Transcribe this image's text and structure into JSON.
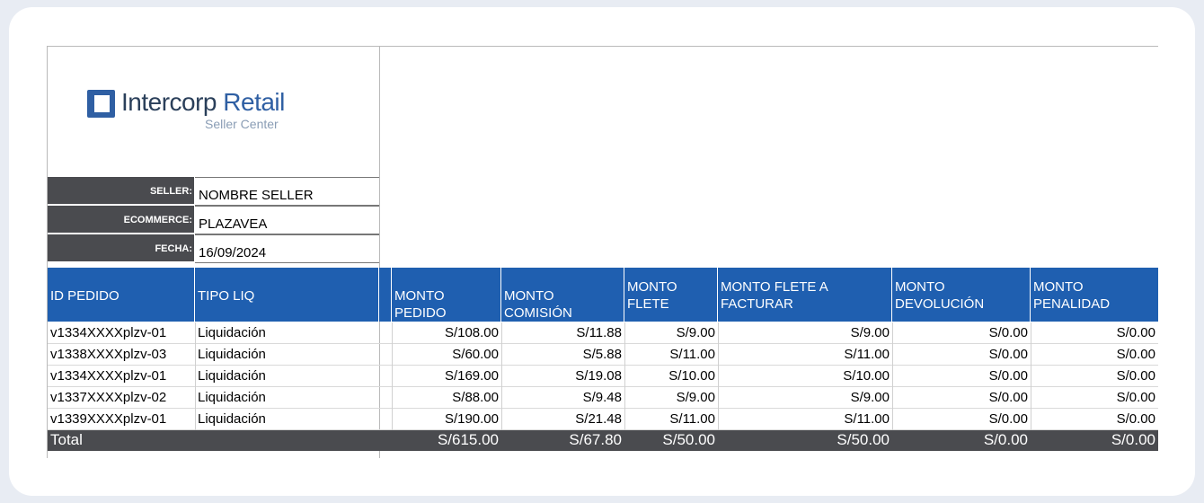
{
  "brand": {
    "name_dark": "Intercorp",
    "name_light": "Retail",
    "subtitle": "Seller Center",
    "mark_color": "#2f5fa3"
  },
  "info": [
    {
      "label": "SELLER:",
      "value": "NOMBRE SELLER"
    },
    {
      "label": "ECOMMERCE:",
      "value": "PLAZAVEA"
    },
    {
      "label": "FECHA:",
      "value": "16/09/2024"
    }
  ],
  "columns": [
    "ID PEDIDO",
    "TIPO LIQ",
    "MONTO PEDIDO",
    "MONTO COMISIÓN",
    "MONTO FLETE",
    "MONTO FLETE A FACTURAR",
    "MONTO DEVOLUCIÓN",
    "MONTO PENALIDAD"
  ],
  "rows": [
    [
      "v1334XXXXplzv-01",
      "Liquidación",
      "S/108.00",
      "S/11.88",
      "S/9.00",
      "S/9.00",
      "S/0.00",
      "S/0.00"
    ],
    [
      "v1338XXXXplzv-03",
      "Liquidación",
      "S/60.00",
      "S/5.88",
      "S/11.00",
      "S/11.00",
      "S/0.00",
      "S/0.00"
    ],
    [
      "v1334XXXXplzv-01",
      "Liquidación",
      "S/169.00",
      "S/19.08",
      "S/10.00",
      "S/10.00",
      "S/0.00",
      "S/0.00"
    ],
    [
      "v1337XXXXplzv-02",
      "Liquidación",
      "S/88.00",
      "S/9.48",
      "S/9.00",
      "S/9.00",
      "S/0.00",
      "S/0.00"
    ],
    [
      "v1339XXXXplzv-01",
      "Liquidación",
      "S/190.00",
      "S/21.48",
      "S/11.00",
      "S/11.00",
      "S/0.00",
      "S/0.00"
    ]
  ],
  "total": {
    "label": "Total",
    "values": [
      "S/615.00",
      "S/67.80",
      "S/50.00",
      "S/50.00",
      "S/0.00",
      "S/0.00"
    ]
  },
  "colors": {
    "header_blue": "#1f5fb0",
    "dark_gray": "#4a4b4f"
  }
}
